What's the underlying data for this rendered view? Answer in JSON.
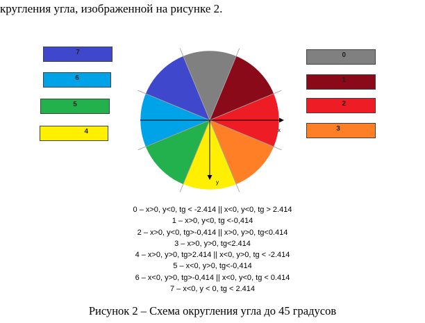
{
  "heading_fragment": "кругления угла, изображенной на рисунке 2.",
  "sectors": [
    {
      "label": "0",
      "color": "#808080"
    },
    {
      "label": "1",
      "color": "#8b0a1a"
    },
    {
      "label": "2",
      "color": "#ee1c25"
    },
    {
      "label": "3",
      "color": "#ff7f27"
    },
    {
      "label": "4",
      "color": "#ffef00"
    },
    {
      "label": "5",
      "color": "#22b14c"
    },
    {
      "label": "6",
      "color": "#00a2e8"
    },
    {
      "label": "7",
      "color": "#3f48cc"
    }
  ],
  "axes": {
    "x_label": "x",
    "y_label": "y"
  },
  "formulas": [
    "0 – x>0, y<0, tg < -2.414 || x<0, y<0, tg > 2.414",
    "1 – x>0, y<0, tg <-0,414",
    "2 – x>0, y<0, tg>-0,414 || x>0, y>0, tg<0.414",
    "3 – x>0, y>0, tg<2.414",
    "4 – x>0, y>0, tg>2.414 || x<0, y>0, tg < -2.414",
    "5 – x<0, y>0, tg<-0,414",
    "6 – x<0, y>0, tg>-0,414 || x<0, y<0, tg < 0.414",
    "7 – x<0, y < 0, tg < 2.414"
  ],
  "caption": "Рисунок 2 – Схема округления угла до 45 градусов"
}
